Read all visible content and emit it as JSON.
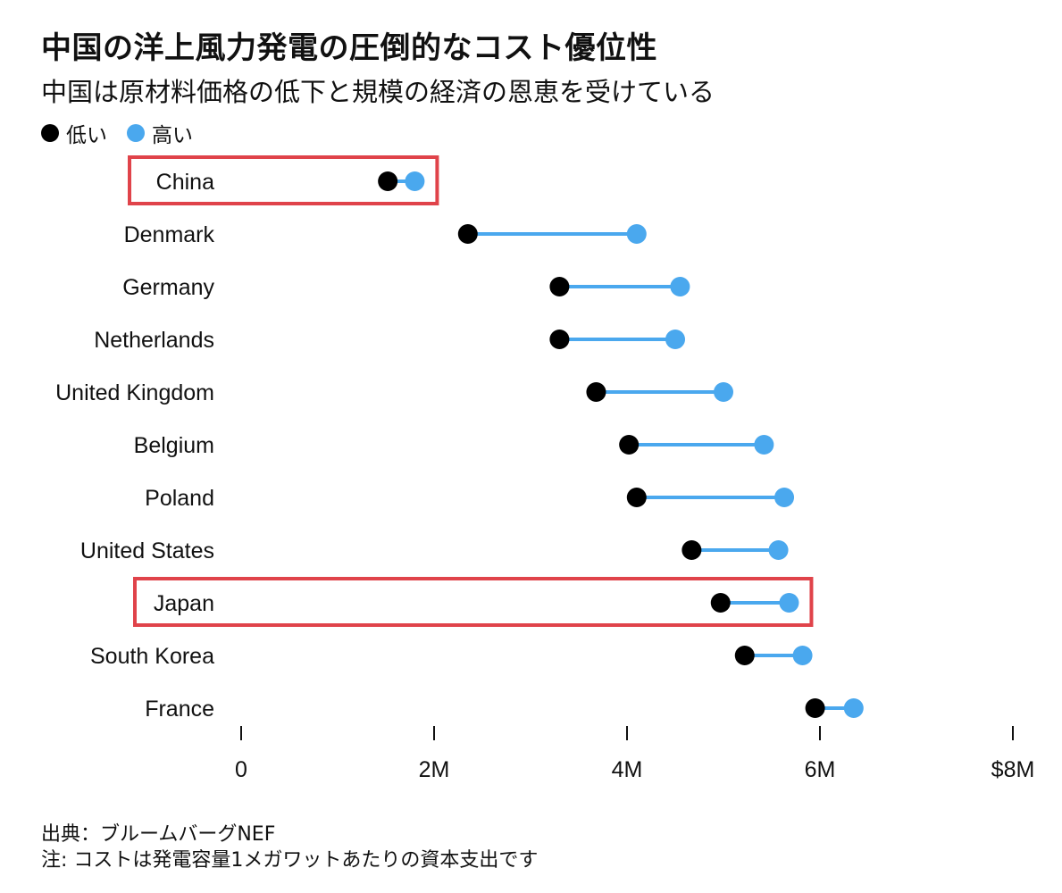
{
  "chart_data": {
    "type": "dumbbell",
    "title": "中国の洋上風力発電の圧倒的なコスト優位性",
    "subtitle": "中国は原材料価格の低下と規模の経済の恩恵を受けている",
    "legend": [
      {
        "label": "低い",
        "color": "#000000"
      },
      {
        "label": "高い",
        "color": "#4aa8ee"
      }
    ],
    "categories": [
      "China",
      "Denmark",
      "Germany",
      "Netherlands",
      "United Kingdom",
      "Belgium",
      "Poland",
      "United States",
      "Japan",
      "South Korea",
      "France"
    ],
    "series": [
      {
        "name": "低い",
        "values": [
          1.52,
          2.35,
          3.3,
          3.3,
          3.68,
          4.02,
          4.1,
          4.67,
          4.97,
          5.22,
          5.95
        ]
      },
      {
        "name": "高い",
        "values": [
          1.8,
          4.1,
          4.55,
          4.5,
          5.0,
          5.42,
          5.63,
          5.57,
          5.68,
          5.82,
          6.35
        ]
      }
    ],
    "highlighted": [
      "China",
      "Japan"
    ],
    "xlim": [
      0,
      8
    ],
    "xticks": [
      0,
      2,
      4,
      6,
      8
    ],
    "xtick_labels": [
      "0",
      "2M",
      "4M",
      "6M",
      "$8M"
    ],
    "unit": "USD millions per MW"
  },
  "colors": {
    "low": "#000000",
    "high": "#4aa8ee",
    "highlight": "#e0434a",
    "axis": "#111111"
  },
  "footer": {
    "source": "出典：ブルームバーグNEF",
    "note": "注: コストは発電容量1メガワットあたりの資本支出です"
  }
}
